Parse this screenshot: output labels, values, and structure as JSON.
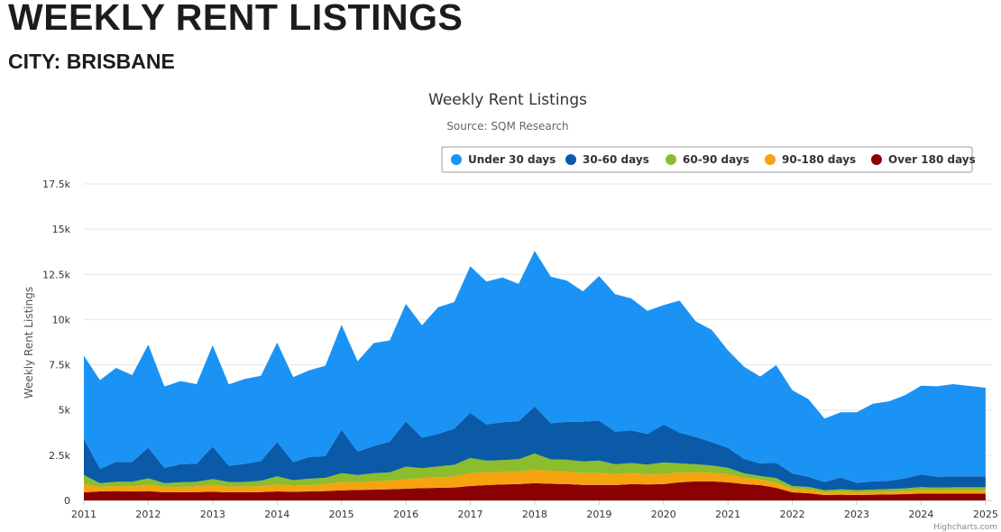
{
  "page": {
    "heading": "WEEKLY RENT LISTINGS",
    "subheading": "CITY: BRISBANE"
  },
  "credits": "Highcharts.com",
  "colors": {
    "under_30": "#1a93f5",
    "d30_60": "#0a5aa8",
    "d60_90": "#8cbd2c",
    "d90_180": "#f7a30f",
    "over_180": "#8b0000"
  },
  "chart_data": {
    "type": "area",
    "stacking": "normal",
    "title": "Weekly Rent Listings",
    "subtitle": "Source: SQM Research",
    "xlabel": "",
    "ylabel": "Weekly Rent Listings",
    "xlim": [
      2011,
      2025.1
    ],
    "ylim": [
      0,
      17500
    ],
    "y_ticks": [
      0,
      2500,
      5000,
      7500,
      10000,
      12500,
      15000,
      17500
    ],
    "y_tick_labels": [
      "0",
      "2.5k",
      "5k",
      "7.5k",
      "10k",
      "12.5k",
      "15k",
      "17.5k"
    ],
    "x_tick_labels": [
      "2011",
      "2012",
      "2013",
      "2014",
      "2015",
      "2016",
      "2017",
      "2018",
      "2019",
      "2020",
      "2021",
      "2022",
      "2023",
      "2024",
      "2025"
    ],
    "grid": true,
    "legend_position": "top-right",
    "x": [
      2011.0,
      2011.25,
      2011.5,
      2011.75,
      2012.0,
      2012.25,
      2012.5,
      2012.75,
      2013.0,
      2013.25,
      2013.5,
      2013.75,
      2014.0,
      2014.25,
      2014.5,
      2014.75,
      2015.0,
      2015.25,
      2015.5,
      2015.75,
      2016.0,
      2016.25,
      2016.5,
      2016.75,
      2017.0,
      2017.25,
      2017.5,
      2017.75,
      2018.0,
      2018.25,
      2018.5,
      2018.75,
      2019.0,
      2019.25,
      2019.5,
      2019.75,
      2020.0,
      2020.25,
      2020.5,
      2020.75,
      2021.0,
      2021.25,
      2021.5,
      2021.75,
      2022.0,
      2022.25,
      2022.5,
      2022.75,
      2023.0,
      2023.25,
      2023.5,
      2023.75,
      2024.0,
      2024.25,
      2024.5,
      2024.75,
      2025.0
    ],
    "series": [
      {
        "name": "Under 30 days",
        "values": [
          4600,
          4900,
          5200,
          4800,
          5700,
          4500,
          4600,
          4400,
          5600,
          4500,
          4700,
          4700,
          5500,
          4700,
          4800,
          5000,
          5800,
          5000,
          5700,
          5600,
          6500,
          6200,
          7000,
          7000,
          8100,
          7900,
          8000,
          7600,
          8600,
          8100,
          7800,
          7200,
          8000,
          7600,
          7300,
          6800,
          6600,
          7300,
          6400,
          6200,
          5400,
          5100,
          4800,
          5400,
          4600,
          4300,
          3500,
          3600,
          3900,
          4300,
          4400,
          4600,
          4900,
          5000,
          5100,
          5000,
          4900
        ]
      },
      {
        "name": "30-60 days",
        "values": [
          2000,
          800,
          1100,
          1100,
          1700,
          850,
          1000,
          1000,
          1800,
          900,
          1000,
          1100,
          1900,
          1000,
          1200,
          1200,
          2400,
          1300,
          1500,
          1700,
          2500,
          1700,
          1800,
          2000,
          2500,
          2000,
          2100,
          2100,
          2600,
          2000,
          2100,
          2200,
          2200,
          1800,
          1800,
          1700,
          2100,
          1700,
          1500,
          1300,
          1100,
          800,
          700,
          850,
          700,
          550,
          450,
          650,
          400,
          450,
          450,
          550,
          700,
          600,
          600,
          600,
          600
        ]
      },
      {
        "name": "60-90 days",
        "values": [
          500,
          200,
          230,
          250,
          350,
          200,
          250,
          250,
          350,
          250,
          250,
          300,
          450,
          300,
          350,
          350,
          500,
          400,
          450,
          450,
          700,
          550,
          600,
          650,
          850,
          650,
          650,
          700,
          900,
          650,
          650,
          650,
          700,
          550,
          550,
          550,
          650,
          500,
          450,
          400,
          350,
          250,
          200,
          250,
          150,
          150,
          120,
          150,
          120,
          130,
          140,
          150,
          180,
          160,
          170,
          170,
          170
        ]
      },
      {
        "name": "90-180 days",
        "values": [
          450,
          250,
          280,
          280,
          350,
          300,
          300,
          320,
          350,
          320,
          320,
          330,
          380,
          340,
          350,
          380,
          450,
          420,
          450,
          480,
          520,
          550,
          580,
          600,
          700,
          700,
          700,
          680,
          750,
          700,
          700,
          650,
          650,
          600,
          620,
          550,
          550,
          550,
          500,
          480,
          450,
          350,
          300,
          280,
          200,
          200,
          150,
          150,
          150,
          150,
          160,
          170,
          180,
          170,
          180,
          180,
          180
        ]
      },
      {
        "name": "Over 180 days",
        "values": [
          450,
          500,
          520,
          500,
          520,
          450,
          450,
          460,
          480,
          450,
          450,
          460,
          500,
          480,
          500,
          520,
          560,
          580,
          600,
          620,
          650,
          680,
          700,
          720,
          800,
          850,
          880,
          900,
          950,
          920,
          900,
          860,
          860,
          850,
          900,
          880,
          900,
          1000,
          1050,
          1050,
          1000,
          900,
          850,
          700,
          450,
          400,
          300,
          320,
          300,
          320,
          330,
          350,
          380,
          380,
          380,
          380,
          380
        ]
      }
    ]
  }
}
